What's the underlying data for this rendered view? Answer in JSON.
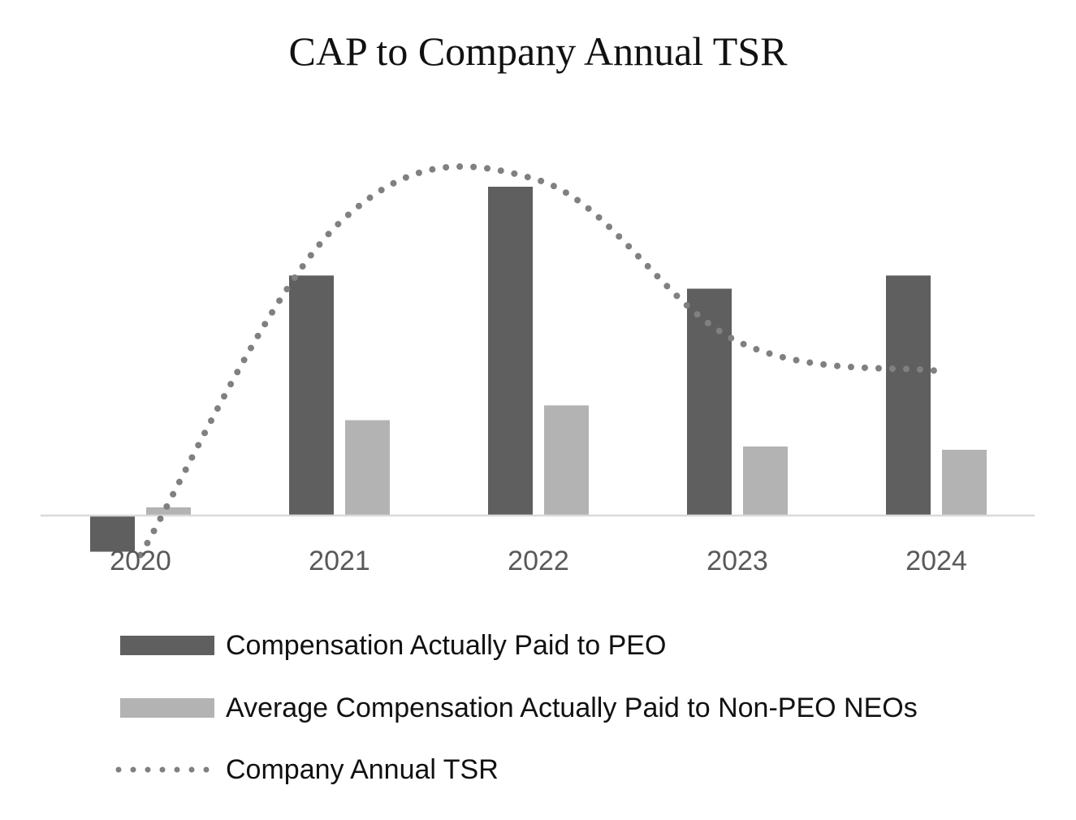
{
  "chart_data": {
    "type": "bar",
    "title": "CAP to Company Annual TSR",
    "categories": [
      "2020",
      "2021",
      "2022",
      "2023",
      "2024"
    ],
    "series": [
      {
        "name": "Compensation Actually Paid to PEO",
        "kind": "bar",
        "color": "#5f5f5f",
        "values": [
          -1.1,
          7.3,
          10.0,
          6.9,
          7.3
        ]
      },
      {
        "name": "Average Compensation Actually Paid to Non-PEO NEOs",
        "kind": "bar",
        "color": "#b3b3b3",
        "values": [
          0.25,
          2.9,
          3.35,
          2.1,
          2.0
        ]
      },
      {
        "name": "Company Annual TSR",
        "kind": "line",
        "style": "dotted",
        "color": "#808080",
        "values": [
          -1.2,
          8.9,
          10.2,
          5.3,
          4.4
        ]
      }
    ],
    "ylim": [
      -1.2,
      10.5
    ],
    "xlabel": "",
    "ylabel": "",
    "grid": false,
    "y_axis_labels_shown": false,
    "legend_position": "bottom"
  }
}
